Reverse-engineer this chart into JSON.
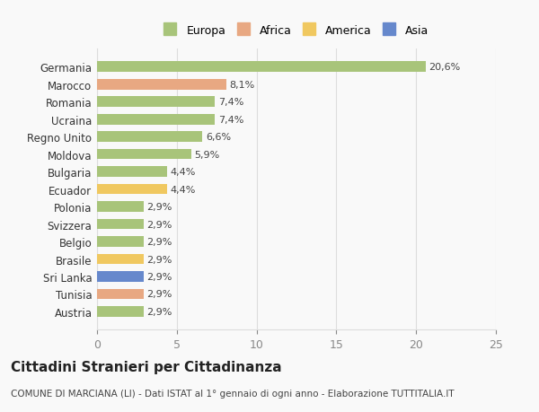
{
  "countries": [
    "Austria",
    "Tunisia",
    "Sri Lanka",
    "Brasile",
    "Belgio",
    "Svizzera",
    "Polonia",
    "Ecuador",
    "Bulgaria",
    "Moldova",
    "Regno Unito",
    "Ucraina",
    "Romania",
    "Marocco",
    "Germania"
  ],
  "values": [
    2.9,
    2.9,
    2.9,
    2.9,
    2.9,
    2.9,
    2.9,
    4.4,
    4.4,
    5.9,
    6.6,
    7.4,
    7.4,
    8.1,
    20.6
  ],
  "labels": [
    "2,9%",
    "2,9%",
    "2,9%",
    "2,9%",
    "2,9%",
    "2,9%",
    "2,9%",
    "4,4%",
    "4,4%",
    "5,9%",
    "6,6%",
    "7,4%",
    "7,4%",
    "8,1%",
    "20,6%"
  ],
  "colors": [
    "#a8c47a",
    "#e8a882",
    "#6688cc",
    "#f0c860",
    "#a8c47a",
    "#a8c47a",
    "#a8c47a",
    "#f0c860",
    "#a8c47a",
    "#a8c47a",
    "#a8c47a",
    "#a8c47a",
    "#a8c47a",
    "#e8a882",
    "#a8c47a"
  ],
  "continent_colors": {
    "Europa": "#a8c47a",
    "Africa": "#e8a882",
    "America": "#f0c860",
    "Asia": "#6688cc"
  },
  "title": "Cittadini Stranieri per Cittadinanza",
  "subtitle": "COMUNE DI MARCIANA (LI) - Dati ISTAT al 1° gennaio di ogni anno - Elaborazione TUTTITALIA.IT",
  "xlim": [
    0,
    25
  ],
  "xticks": [
    0,
    5,
    10,
    15,
    20,
    25
  ],
  "background_color": "#f9f9f9",
  "bar_background": "#ffffff",
  "grid_color": "#dddddd"
}
